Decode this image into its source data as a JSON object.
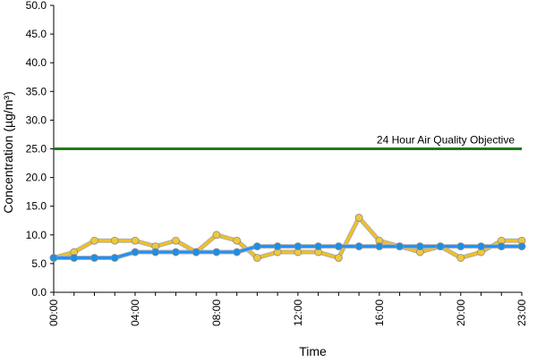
{
  "chart_data": {
    "type": "line",
    "title": "",
    "xlabel": "Time",
    "ylabel": "Concentration (µg/m³)",
    "ylim": [
      0,
      50
    ],
    "y_ticks": [
      "0.0",
      "5.0",
      "10.0",
      "15.0",
      "20.0",
      "25.0",
      "30.0",
      "35.0",
      "40.0",
      "45.0",
      "50.0"
    ],
    "x_hours": [
      0,
      1,
      2,
      3,
      4,
      5,
      6,
      7,
      8,
      9,
      10,
      11,
      12,
      13,
      14,
      15,
      16,
      17,
      18,
      19,
      20,
      21,
      22,
      23
    ],
    "x_tick_labels": [
      {
        "hour": 0,
        "label": "00:00"
      },
      {
        "hour": 4,
        "label": "04:00"
      },
      {
        "hour": 8,
        "label": "08:00"
      },
      {
        "hour": 12,
        "label": "12:00"
      },
      {
        "hour": 16,
        "label": "16:00"
      },
      {
        "hour": 20,
        "label": "20:00"
      },
      {
        "hour": 23,
        "label": "23:00"
      }
    ],
    "grid": false,
    "legend": "none",
    "series": [
      {
        "color": "#f2c01e",
        "marker_fill": "#f0c93a",
        "values": [
          6,
          7,
          9,
          9,
          9,
          8,
          9,
          7,
          10,
          9,
          6,
          7,
          7,
          7,
          6,
          13,
          9,
          8,
          7,
          8,
          6,
          7,
          9,
          9
        ]
      },
      {
        "color": "#1e90ff",
        "marker_fill": "#1c8fe6",
        "values": [
          6,
          6,
          6,
          6,
          7,
          7,
          7,
          7,
          7,
          7,
          8,
          8,
          8,
          8,
          8,
          8,
          8,
          8,
          8,
          8,
          8,
          8,
          8,
          8
        ]
      }
    ],
    "reference_line": {
      "label": "24 Hour Air Quality Objective",
      "value": 25,
      "color": "#1f7a1f"
    }
  }
}
